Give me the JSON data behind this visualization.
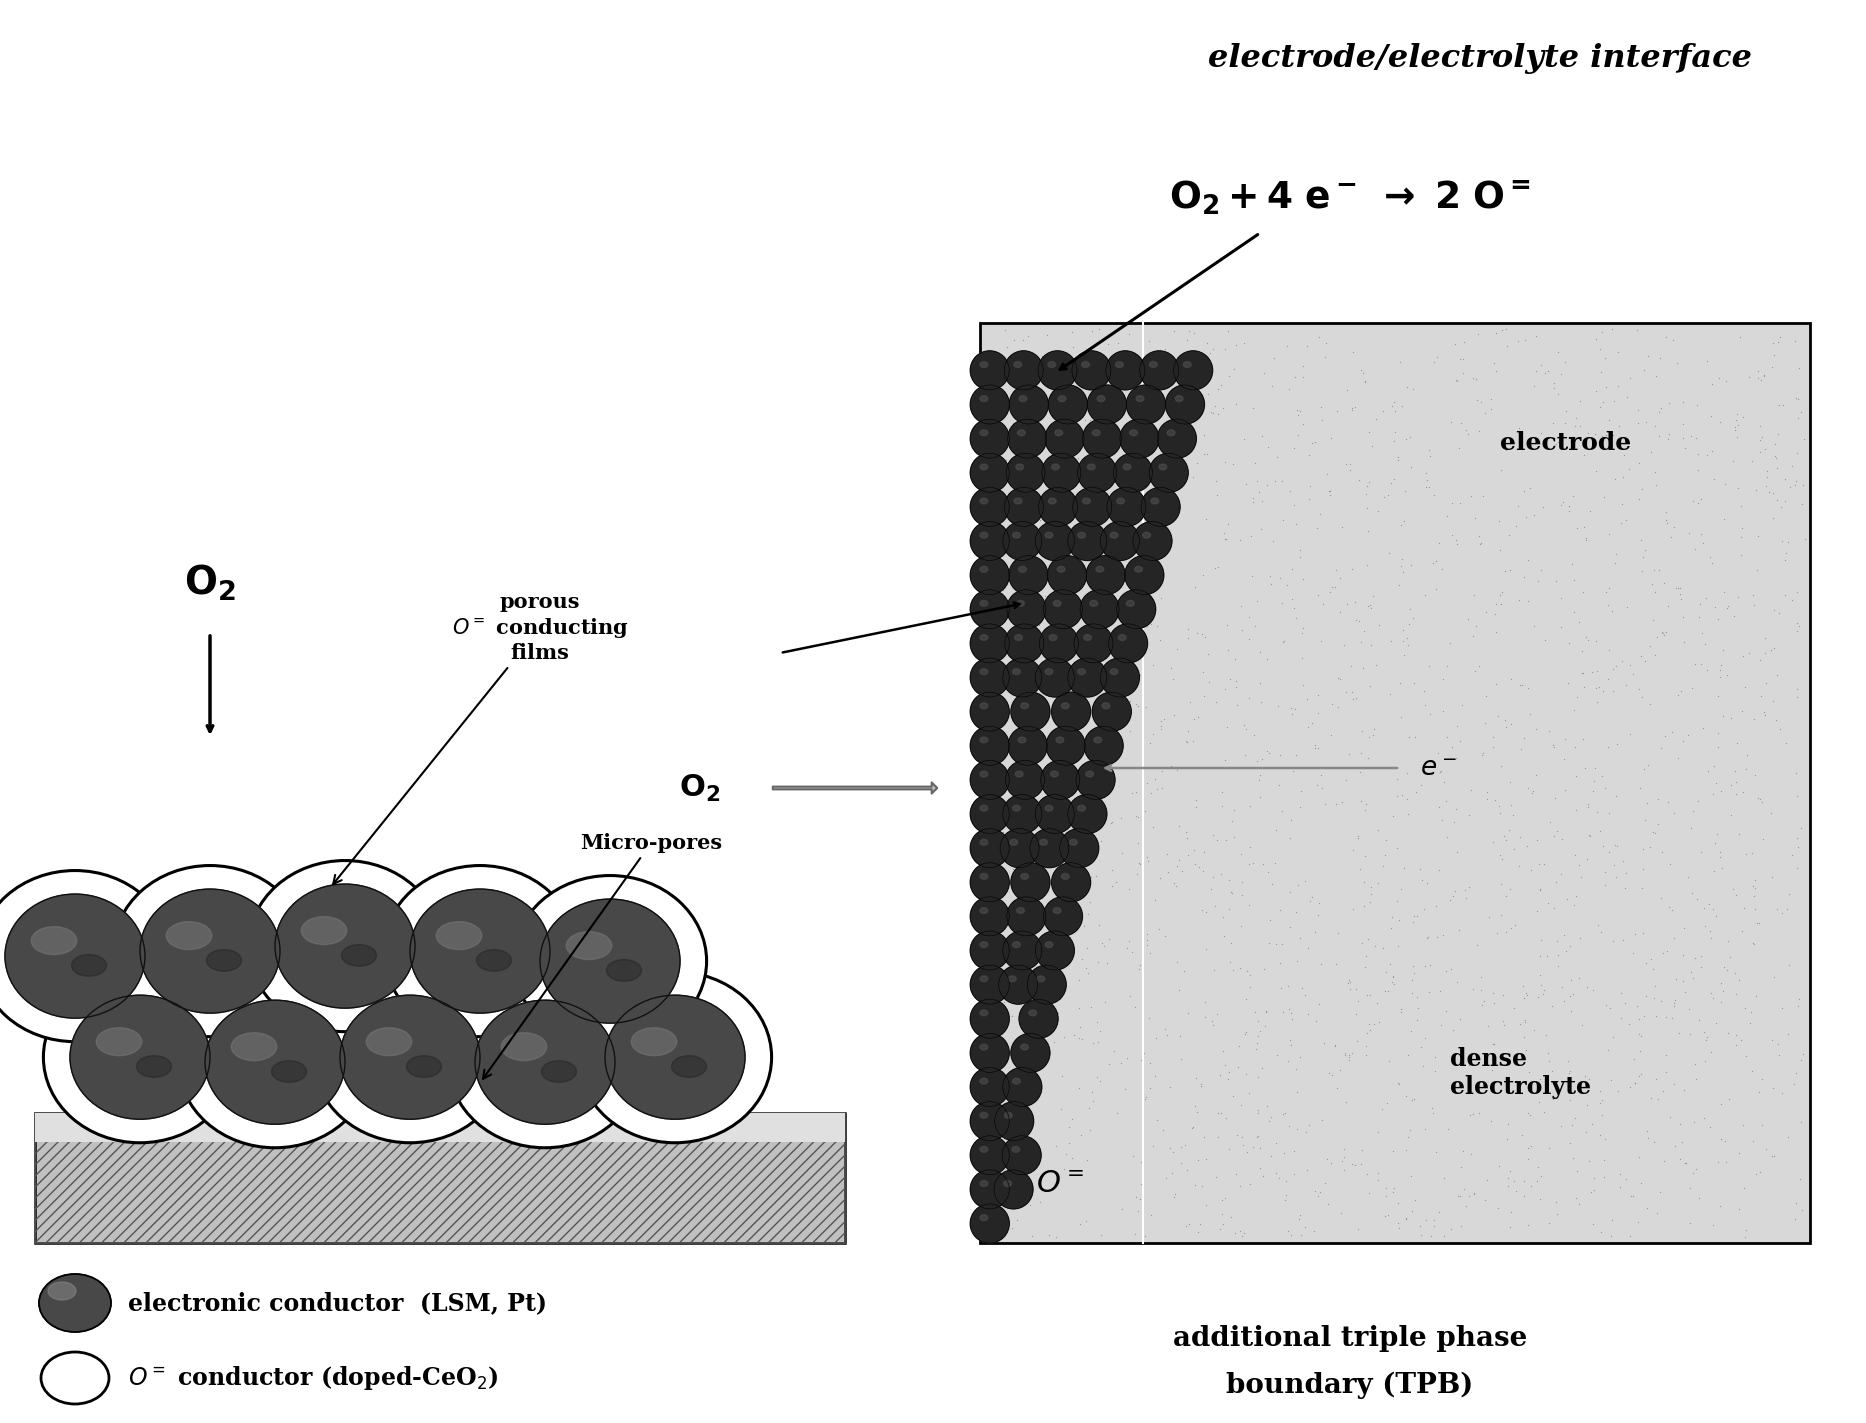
{
  "title": "electrode/electrolyte interface",
  "bg_color": "#ffffff",
  "electrolyte_bg": "#d8d8d8",
  "dark_particle_color": "#252525",
  "sphere_color": "#4a4a4a",
  "sphere_highlight": "#808080",
  "substrate_color": "#c8c8c8",
  "legend_electronic": "electronic conductor  (LSM, Pt)",
  "legend_oconductor": "O= conductor (doped-CeO2)",
  "legend_tpb_line1": "additional triple phase",
  "legend_tpb_line2": "boundary (TPB)"
}
